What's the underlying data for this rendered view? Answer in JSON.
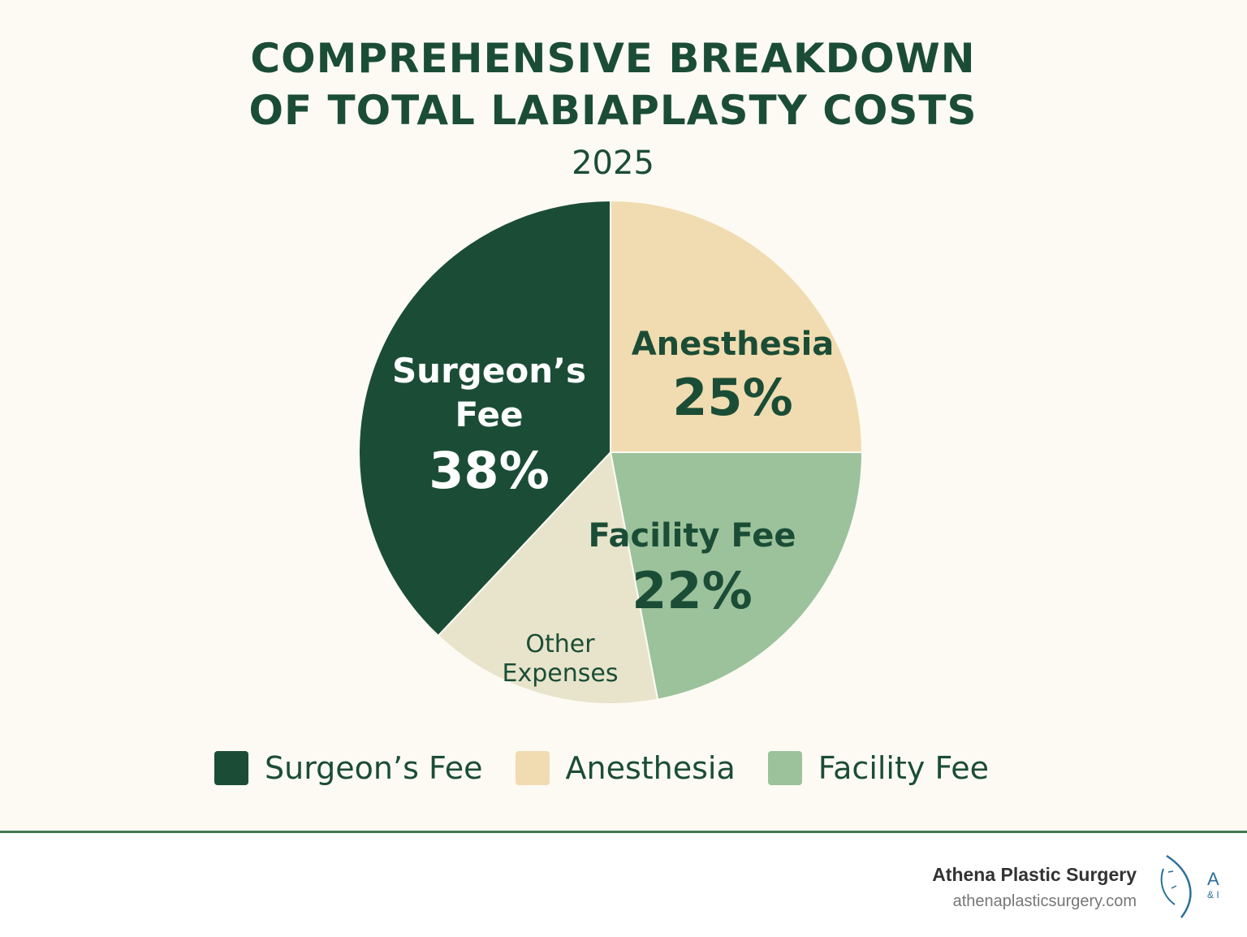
{
  "chart_data": {
    "type": "pie",
    "title": "COMPREHENSIVE BREAKDOWN OF TOTAL LABIAPLASTY COSTS",
    "title_lines": [
      "COMPREHENSIVE BREAKDOWN",
      "OF TOTAL LABIAPLASTY COSTS"
    ],
    "subtitle": "2025",
    "slices": [
      {
        "name": "Anesthesia",
        "label": "Anesthesia",
        "value": 25,
        "value_label": "25%",
        "color": "#f0dcb0"
      },
      {
        "name": "Facility Fee",
        "label": "Facility Fee",
        "value": 22,
        "value_label": "22%",
        "color": "#9bc29b"
      },
      {
        "name": "Other Expenses",
        "label": "Other Expenses",
        "value": 15,
        "value_label": "",
        "color": "#e8e4cc"
      },
      {
        "name": "Surgeon's Fee",
        "label": "Surgeon’s Fee",
        "value": 38,
        "value_label": "38%",
        "color": "#1b4d36"
      }
    ],
    "other_label_lines": [
      "Other",
      "Expenses"
    ],
    "surgeon_label_lines": [
      "Surgeon’s",
      "Fee"
    ],
    "legend": [
      {
        "label": "Surgeon’s Fee",
        "color": "#1b4d36"
      },
      {
        "label": "Anesthesia",
        "color": "#f0dcb0"
      },
      {
        "label": "Facility Fee",
        "color": "#9bc29b"
      }
    ],
    "legend_position": "bottom"
  },
  "footer": {
    "brand_name": "Athena Plastic Surgery",
    "url": "athenaplasticsurgery.com",
    "logo_text": "A & I"
  }
}
